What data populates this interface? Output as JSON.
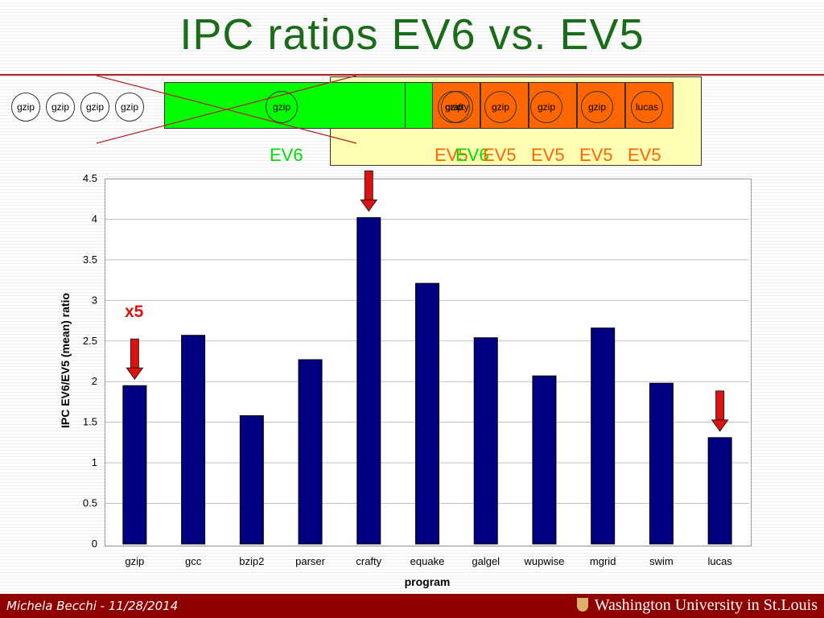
{
  "title": "IPC ratios EV6 vs. EV5",
  "diagram": {
    "left_circles": [
      "gzip",
      "gzip",
      "gzip",
      "gzip"
    ],
    "green_circle": "gzip",
    "orange_overlap": [
      "crafty",
      "gzip"
    ],
    "orange_circles": [
      "gzip",
      "gzip",
      "gzip",
      "lucas"
    ],
    "ev6_label": "EV6",
    "overlap_labels": [
      "EV5",
      "EV6"
    ],
    "ev5_labels": [
      "EV5",
      "EV5",
      "EV5",
      "EV5"
    ]
  },
  "annotation": {
    "x5": "x5"
  },
  "footer": {
    "author": "Michela Becchi - 11/28/2014",
    "logo": "Washington University in St.Louis"
  },
  "colors": {
    "bar": "#000080",
    "grid": "#c0c0c0",
    "arrow": "#e01010",
    "title": "#1a6b1a",
    "footer": "#8e0000"
  },
  "chart_data": {
    "type": "bar",
    "categories": [
      "gzip",
      "gcc",
      "bzip2",
      "parser",
      "crafty",
      "equake",
      "galgel",
      "wupwise",
      "mgrid",
      "swim",
      "lucas"
    ],
    "values": [
      1.95,
      2.57,
      1.58,
      2.27,
      4.02,
      3.21,
      2.54,
      2.07,
      2.66,
      1.98,
      1.31
    ],
    "xlabel": "program",
    "ylabel": "IPC  EV6/EV5 (mean) ratio",
    "ylim": [
      0,
      4.5
    ],
    "yticks": [
      "0",
      "0.5",
      "1",
      "1.5",
      "2",
      "2.5",
      "3",
      "3.5",
      "4",
      "4.5"
    ],
    "grid": true,
    "highlighted": [
      "gzip",
      "crafty",
      "lucas"
    ]
  }
}
